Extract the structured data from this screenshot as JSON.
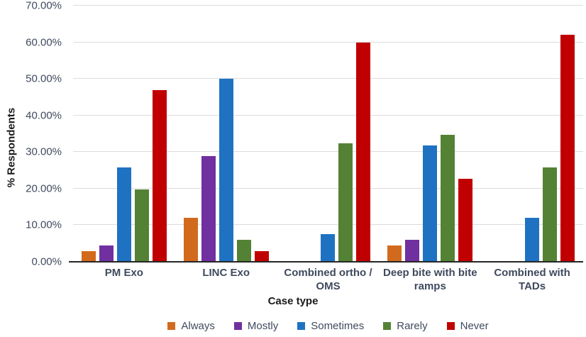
{
  "chart_data": {
    "type": "bar",
    "title": "",
    "xlabel": "Case type",
    "ylabel": "% Respondents",
    "ylim": [
      0,
      70
    ],
    "grid": true,
    "legend_position": "bottom",
    "categories": [
      "PM Exo",
      "LINC Exo",
      "Combined ortho / OMS",
      "Deep bite with bite ramps",
      "Combined with TADs"
    ],
    "series": [
      {
        "name": "Always",
        "color": "#d26a1e",
        "values": [
          3.0,
          12.1,
          0,
          4.5,
          0
        ]
      },
      {
        "name": "Mostly",
        "color": "#7030a0",
        "values": [
          4.5,
          28.8,
          0,
          6.1,
          0
        ]
      },
      {
        "name": "Sometimes",
        "color": "#1f72c2",
        "values": [
          25.8,
          50.0,
          7.6,
          31.8,
          12.1
        ]
      },
      {
        "name": "Rarely",
        "color": "#548235",
        "values": [
          19.7,
          6.1,
          32.4,
          34.8,
          25.8
        ]
      },
      {
        "name": "Never",
        "color": "#c00000",
        "values": [
          47.0,
          3.0,
          60.0,
          22.7,
          62.1
        ]
      }
    ],
    "y_axis": {
      "ticks": [
        {
          "value": 0,
          "label": "0.00%"
        },
        {
          "value": 10,
          "label": "10.00%"
        },
        {
          "value": 20,
          "label": "20.00%"
        },
        {
          "value": 30,
          "label": "30.00%"
        },
        {
          "value": 40,
          "label": "40.00%"
        },
        {
          "value": 50,
          "label": "50.00%"
        },
        {
          "value": 60,
          "label": "60.00%"
        },
        {
          "value": 70,
          "label": "70.00%"
        }
      ]
    },
    "colors": {
      "gridline": "#dcdcdc",
      "axis_line": "#262626",
      "tick_text": "#3f4a5e",
      "title_text": "#1a1a1a"
    }
  }
}
